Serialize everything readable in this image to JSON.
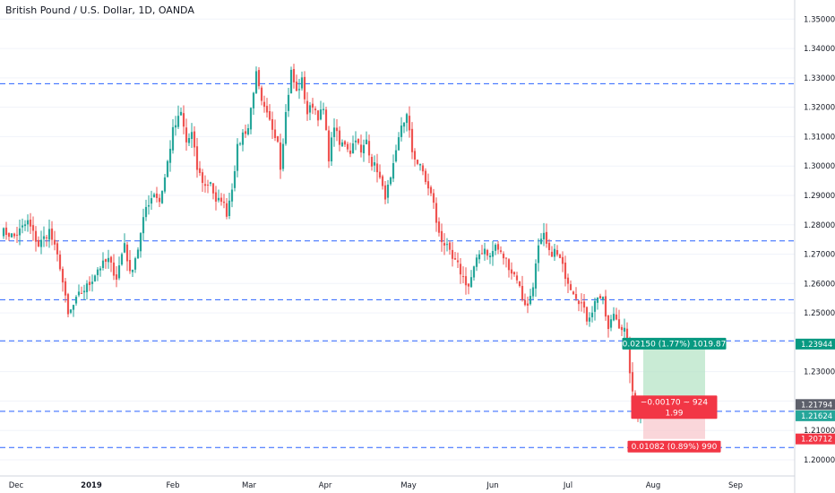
{
  "window": {
    "title": "British Pound / U.S. Dollar, 1D, OANDA"
  },
  "colors": {
    "up": "#26a69a",
    "down": "#ef5350",
    "grid": "#f0f3fa",
    "level_line": "#2962ff",
    "target_fill": "#b7e4c7",
    "stop_fill": "#f8c8cd",
    "target_label": "#089981",
    "stop_label": "#f23645",
    "current_price": "#26a69a"
  },
  "chart_data": {
    "type": "candlestick",
    "ylim": [
      1.1945,
      1.3565
    ],
    "yticks": [
      1.2,
      1.21,
      1.22,
      1.23,
      1.24,
      1.25,
      1.26,
      1.27,
      1.28,
      1.29,
      1.3,
      1.31,
      1.32,
      1.33,
      1.34,
      1.35
    ],
    "ytick_labels": [
      "1.20000",
      "1.21000",
      "",
      "1.23000",
      "",
      "1.25000",
      "1.26000",
      "1.27000",
      "1.28000",
      "1.29000",
      "1.30000",
      "1.31000",
      "1.32000",
      "1.33000",
      "1.34000",
      "1.35000"
    ],
    "xaxis_labels": [
      "Dec",
      "2019",
      "Feb",
      "Mar",
      "Apr",
      "May",
      "Jun",
      "Jul",
      "Aug",
      "Sep"
    ],
    "xaxis_label_bold": [
      false,
      true,
      false,
      false,
      false,
      false,
      false,
      false,
      false,
      false
    ],
    "horizontal_levels": [
      1.328,
      1.2745,
      1.2545,
      1.2405,
      1.2165,
      1.2042
    ],
    "close_path": [
      [
        0,
        1.278
      ],
      [
        5,
        1.276
      ],
      [
        10,
        1.281
      ],
      [
        14,
        1.273
      ],
      [
        18,
        1.278
      ],
      [
        22,
        1.266
      ],
      [
        25,
        1.249
      ],
      [
        29,
        1.256
      ],
      [
        33,
        1.26
      ],
      [
        36,
        1.265
      ],
      [
        40,
        1.268
      ],
      [
        43,
        1.262
      ],
      [
        46,
        1.274
      ],
      [
        48,
        1.263
      ],
      [
        51,
        1.272
      ],
      [
        54,
        1.286
      ],
      [
        57,
        1.291
      ],
      [
        59,
        1.288
      ],
      [
        61,
        1.296
      ],
      [
        64,
        1.312
      ],
      [
        67,
        1.318
      ],
      [
        69,
        1.308
      ],
      [
        71,
        1.311
      ],
      [
        73,
        1.299
      ],
      [
        76,
        1.293
      ],
      [
        78,
        1.295
      ],
      [
        80,
        1.287
      ],
      [
        82,
        1.289
      ],
      [
        84,
        1.284
      ],
      [
        86,
        1.293
      ],
      [
        88,
        1.306
      ],
      [
        90,
        1.311
      ],
      [
        92,
        1.313
      ],
      [
        94,
        1.326
      ],
      [
        95,
        1.331
      ],
      [
        97,
        1.321
      ],
      [
        99,
        1.317
      ],
      [
        101,
        1.313
      ],
      [
        103,
        1.309
      ],
      [
        104,
        1.3
      ],
      [
        106,
        1.318
      ],
      [
        108,
        1.332
      ],
      [
        110,
        1.325
      ],
      [
        112,
        1.329
      ],
      [
        114,
        1.318
      ],
      [
        116,
        1.321
      ],
      [
        118,
        1.317
      ],
      [
        120,
        1.319
      ],
      [
        122,
        1.303
      ],
      [
        124,
        1.314
      ],
      [
        126,
        1.307
      ],
      [
        128,
        1.308
      ],
      [
        130,
        1.305
      ],
      [
        132,
        1.31
      ],
      [
        134,
        1.304
      ],
      [
        136,
        1.309
      ],
      [
        138,
        1.301
      ],
      [
        140,
        1.299
      ],
      [
        142,
        1.292
      ],
      [
        143,
        1.29
      ],
      [
        145,
        1.295
      ],
      [
        147,
        1.304
      ],
      [
        149,
        1.314
      ],
      [
        151,
        1.317
      ],
      [
        153,
        1.305
      ],
      [
        155,
        1.301
      ],
      [
        157,
        1.298
      ],
      [
        159,
        1.292
      ],
      [
        161,
        1.288
      ],
      [
        162,
        1.28
      ],
      [
        164,
        1.275
      ],
      [
        166,
        1.272
      ],
      [
        168,
        1.268
      ],
      [
        170,
        1.266
      ],
      [
        172,
        1.262
      ],
      [
        174,
        1.259
      ],
      [
        176,
        1.265
      ],
      [
        178,
        1.27
      ],
      [
        180,
        1.272
      ],
      [
        182,
        1.269
      ],
      [
        184,
        1.273
      ],
      [
        186,
        1.27
      ],
      [
        188,
        1.268
      ],
      [
        190,
        1.264
      ],
      [
        192,
        1.262
      ],
      [
        194,
        1.255
      ],
      [
        196,
        1.252
      ],
      [
        198,
        1.26
      ],
      [
        200,
        1.272
      ],
      [
        202,
        1.276
      ],
      [
        204,
        1.27
      ],
      [
        206,
        1.271
      ],
      [
        208,
        1.268
      ],
      [
        210,
        1.263
      ],
      [
        212,
        1.259
      ],
      [
        214,
        1.256
      ],
      [
        216,
        1.253
      ],
      [
        218,
        1.248
      ],
      [
        220,
        1.251
      ],
      [
        222,
        1.256
      ],
      [
        224,
        1.254
      ],
      [
        226,
        1.244
      ],
      [
        228,
        1.25
      ],
      [
        230,
        1.246
      ],
      [
        232,
        1.244
      ],
      [
        233,
        1.239
      ],
      [
        235,
        1.222
      ],
      [
        237,
        1.216
      ],
      [
        239,
        1.2162
      ]
    ],
    "bar_range": [
      0,
      265
    ],
    "position_tool": {
      "bar_start": 239,
      "bar_end": 262,
      "entry": 1.2179,
      "target": 1.2394,
      "stop": 1.2071,
      "target_text": "0.02150 (1.77%) 1019.87",
      "stop_text": "0.01082 (0.89%) 990",
      "center_text_1": "−0.00170 ~ 924",
      "center_text_2": "1.99"
    },
    "price_tags": [
      {
        "value": 1.2394,
        "label": "1.23944",
        "kind": "target"
      },
      {
        "value": 1.2179,
        "label": "1.21794",
        "kind": "entry"
      },
      {
        "value": 1.2162,
        "label": "1.21624",
        "kind": "current"
      },
      {
        "value": 1.2071,
        "label": "1.20712",
        "kind": "stop"
      }
    ]
  }
}
